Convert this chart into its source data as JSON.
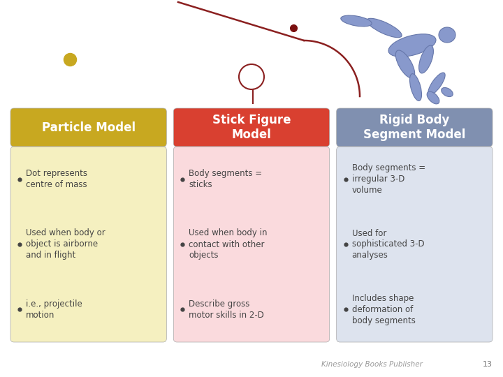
{
  "background_color": "#ffffff",
  "col1_header_bg": "#c8a820",
  "col2_header_bg": "#d94030",
  "col3_header_bg": "#8090b0",
  "col1_body_bg": "#f5f0c0",
  "col2_body_bg": "#fadadd",
  "col3_body_bg": "#dde3ee",
  "header_text_color": "#ffffff",
  "body_text_color": "#444444",
  "col1_header": "Particle Model",
  "col2_header": "Stick Figure\nModel",
  "col3_header": "Rigid Body\nSegment Model",
  "col1_bullets": [
    "Dot represents\ncentre of mass",
    "Used when body or\nobject is airborne\nand in flight",
    "i.e., projectile\nmotion"
  ],
  "col2_bullets": [
    "Body segments =\nsticks",
    "Used when body in\ncontact with other\nobjects",
    "Describe gross\nmotor skills in 2-D"
  ],
  "col3_bullets": [
    "Body segments =\nirregular 3-D\nvolume",
    "Used for\nsophisticated 3-D\nanalyses",
    "Includes shape\ndeformation of\nbody segments"
  ],
  "footer_text": "Kinesiology Books Publisher",
  "footer_number": "13",
  "dot_color": "#c8a820",
  "stick_dot_color": "#7a1010",
  "stick_line_color": "#8b2020",
  "rigid_body_color": "#8899cc",
  "rigid_body_edge": "#6677aa",
  "col_border_color": "#aaaaaa"
}
